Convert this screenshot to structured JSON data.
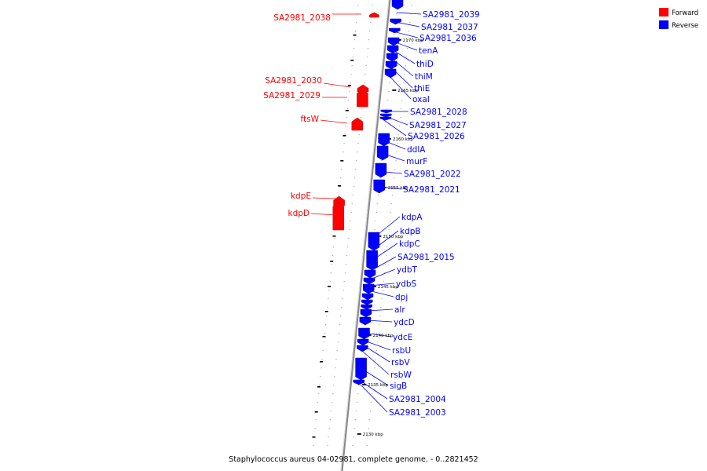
{
  "title": "Staphylococcus aureus 04-02981, complete genome. - 0..2821452",
  "legend": [
    {
      "label": "Forward",
      "color": "#ff0000"
    },
    {
      "label": "Reverse",
      "color": "#0000ff"
    }
  ],
  "kbp_labels": [
    "2170 kbp",
    "2165 kbp",
    "2160 kbp",
    "2155 kbp",
    "2150 kbp",
    "2145 kbp",
    "2140 kbp",
    "2135 kbp",
    "2130 kbp"
  ],
  "forward_genes": [
    "SA2981_2038",
    "SA2981_2030",
    "SA2981_2029",
    "ftsW",
    "kdpE",
    "kdpD"
  ],
  "reverse_genes": [
    "SA2981_2039",
    "SA2981_2037",
    "SA2981_2036",
    "tenA",
    "thiD",
    "thiM",
    "thiE",
    "oxaI",
    "SA2981_2028",
    "SA2981_2027",
    "SA2981_2026",
    "ddlA",
    "murF",
    "SA2981_2022",
    "SA2981_2021",
    "kdpA",
    "kdpB",
    "kdpC",
    "SA2981_2015",
    "ydbT",
    "ydbS",
    "dpj",
    "alr",
    "ydcD",
    "ydcE",
    "rsbU",
    "rsbV",
    "rsbW",
    "sigB",
    "SA2981_2004",
    "SA2981_2003"
  ]
}
